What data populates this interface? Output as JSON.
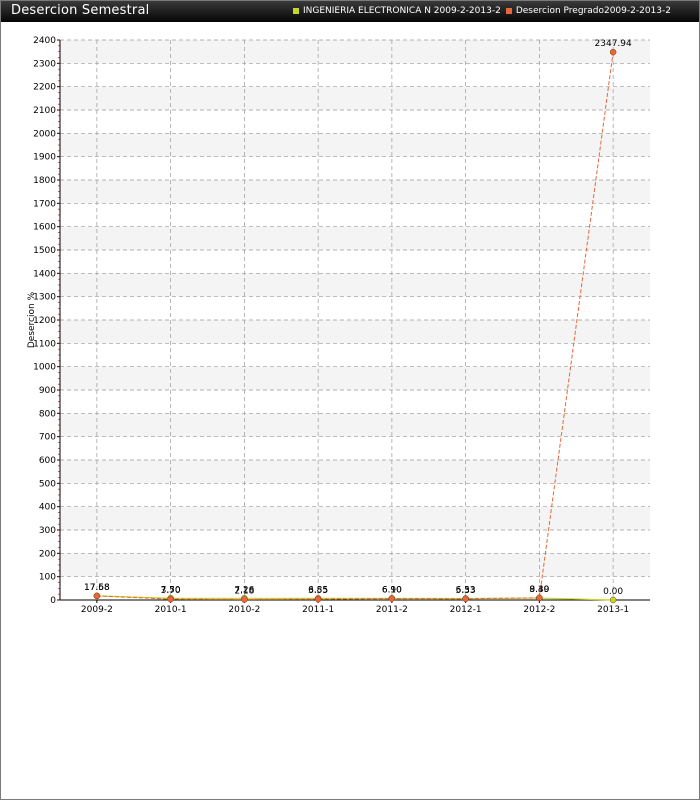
{
  "panel": {
    "title": "Desercion Semestral"
  },
  "colors": {
    "series1": "#c6d72a",
    "series2": "#e8673a",
    "header_bg": "#1a1a1a"
  },
  "chart_data": {
    "type": "line",
    "title": "Desercion Semestral",
    "xlabel": "",
    "ylabel": "Desercion %",
    "categories": [
      "2009-2",
      "2010-1",
      "2010-2",
      "2011-1",
      "2011-2",
      "2012-1",
      "2012-2",
      "2013-1"
    ],
    "ylim": [
      0,
      2400
    ],
    "yticks": [
      0,
      100,
      200,
      300,
      400,
      500,
      600,
      700,
      800,
      900,
      1000,
      1100,
      1200,
      1300,
      1400,
      1500,
      1600,
      1700,
      1800,
      1900,
      2000,
      2100,
      2200,
      2300,
      2400
    ],
    "grid": true,
    "legend_position": "top-right",
    "series": [
      {
        "name": "INGENIERIA ELECTRONICA N 2009-2-2013-2",
        "color": "#c6d72a",
        "values": [
          17.68,
          7.5,
          7.26,
          6.85,
          6.9,
          6.53,
          8.39,
          0.0
        ],
        "labels": [
          "17.68",
          "7.50",
          "7.26",
          "6.85",
          "6.90",
          "6.53",
          "8.39",
          "0.00"
        ]
      },
      {
        "name": "Desercion Pregrado2009-2-2013-2",
        "color": "#e8673a",
        "values": [
          17.58,
          3.7,
          2.18,
          3.55,
          6.1,
          5.33,
          9.4,
          2347.94
        ],
        "labels": [
          "17.58",
          "3.70",
          "2.18",
          "3.55",
          "6.10",
          "5.33",
          "9.40",
          "2347.94"
        ]
      }
    ]
  }
}
